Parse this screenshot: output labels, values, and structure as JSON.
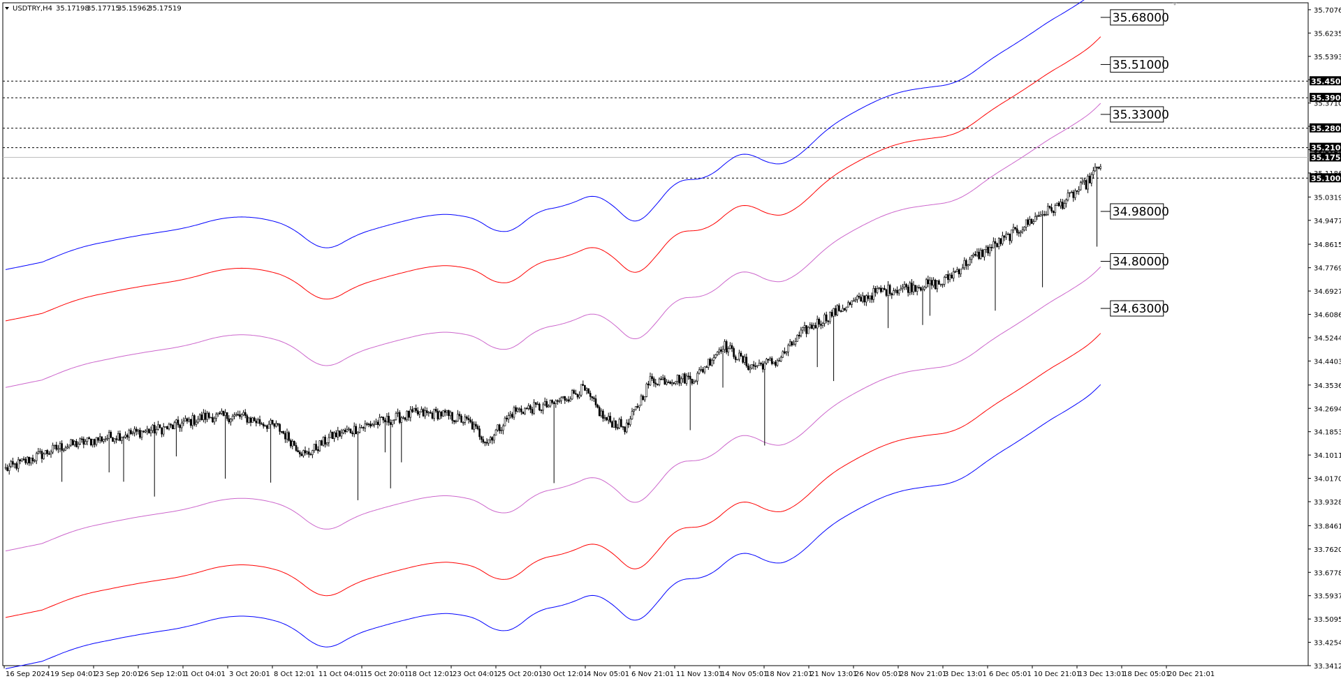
{
  "header": {
    "symbol": "USDTRY,H4",
    "open": "35.17198",
    "high": "35.17715",
    "low": "35.15962",
    "close": "35.17519"
  },
  "chart_data": {
    "type": "candlestick",
    "ylim": [
      33.34125,
      35.7326
    ],
    "y_ticks": [
      "35.70765",
      "35.62350",
      "35.53935",
      "35.45520",
      "35.37105",
      "35.28690",
      "35.20275",
      "35.11860",
      "35.03190",
      "34.94775",
      "34.86150",
      "34.77690",
      "34.69275",
      "34.60860",
      "34.52445",
      "34.44030",
      "34.35360",
      "34.26945",
      "34.18530",
      "34.10115",
      "34.01700",
      "33.93285",
      "33.84615",
      "33.76200",
      "33.67785",
      "33.59370",
      "33.50955",
      "33.42540",
      "33.34125"
    ],
    "x_ticks": [
      "16 Sep 2024",
      "19 Sep 04:01",
      "23 Sep 20:01",
      "26 Sep 12:01",
      "1 Oct 04:01",
      "3 Oct 20:01",
      "8 Oct 12:01",
      "11 Oct 04:01",
      "15 Oct 20:01",
      "18 Oct 12:01",
      "23 Oct 04:01",
      "25 Oct 20:01",
      "30 Oct 12:01",
      "4 Nov 05:01",
      "6 Nov 21:01",
      "11 Nov 13:01",
      "14 Nov 05:01",
      "18 Nov 21:01",
      "21 Nov 13:01",
      "26 Nov 05:01",
      "28 Nov 21:01",
      "3 Dec 13:01",
      "6 Dec 05:01",
      "10 Dec 21:01",
      "13 Dec 13:01",
      "18 Dec 05:01",
      "20 Dec 21:01"
    ],
    "horizontal_levels": [
      "35.45000",
      "35.39000",
      "35.28000",
      "35.21000",
      "35.10000"
    ],
    "current_price": "35.17519",
    "band_labels": [
      "35.68000",
      "35.51000",
      "35.33000",
      "34.98000",
      "34.80000",
      "34.63000"
    ],
    "band_colors": {
      "outer": "#0000ff",
      "middle": "#ff0000",
      "inner": "#cc66cc"
    },
    "series": {
      "center_anchors": [
        [
          0,
          34.05
        ],
        [
          30,
          34.13
        ],
        [
          60,
          34.17
        ],
        [
          90,
          34.2
        ],
        [
          110,
          34.24
        ],
        [
          130,
          34.24
        ],
        [
          150,
          34.2
        ],
        [
          165,
          34.1
        ],
        [
          180,
          34.17
        ],
        [
          200,
          34.21
        ],
        [
          225,
          34.25
        ],
        [
          240,
          34.25
        ],
        [
          255,
          34.22
        ],
        [
          265,
          34.15
        ],
        [
          280,
          34.26
        ],
        [
          300,
          34.28
        ],
        [
          318,
          34.34
        ],
        [
          330,
          34.23
        ],
        [
          342,
          34.2
        ],
        [
          355,
          34.37
        ],
        [
          380,
          34.38
        ],
        [
          395,
          34.5
        ],
        [
          410,
          34.42
        ],
        [
          425,
          34.44
        ],
        [
          440,
          34.55
        ],
        [
          460,
          34.63
        ],
        [
          480,
          34.69
        ],
        [
          500,
          34.71
        ],
        [
          515,
          34.72
        ],
        [
          530,
          34.8
        ],
        [
          550,
          34.88
        ],
        [
          570,
          34.97
        ],
        [
          580,
          35.0
        ],
        [
          595,
          35.08
        ],
        [
          603,
          35.15
        ]
      ],
      "band_offsets": {
        "inner": 0.295,
        "middle": 0.535,
        "outer": 0.72
      },
      "candle_count": 604
    }
  }
}
